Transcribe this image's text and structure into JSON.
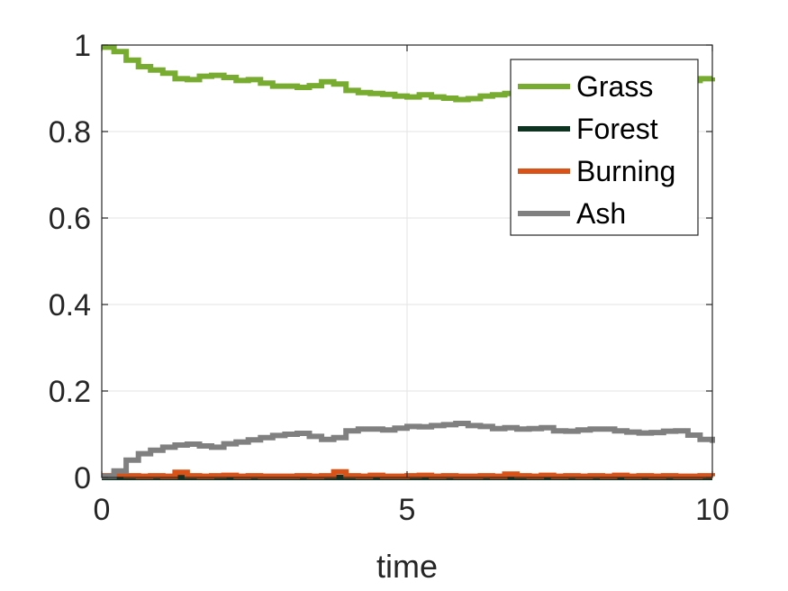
{
  "chart_data": {
    "type": "line",
    "title": "",
    "xlabel": "time",
    "ylabel": "",
    "xlim": [
      0,
      10
    ],
    "ylim": [
      0,
      1
    ],
    "x_ticks": [
      0,
      5,
      10
    ],
    "x_tick_labels": [
      "0",
      "5",
      "10"
    ],
    "y_ticks": [
      0,
      0.2,
      0.4,
      0.6,
      0.8,
      1
    ],
    "y_tick_labels": [
      "0",
      "0.2",
      "0.4",
      "0.6",
      "0.8",
      "1"
    ],
    "grid": true,
    "legend_position": "top-right",
    "series": [
      {
        "name": "Grass",
        "color": "#77ac30",
        "x": [
          0,
          0.2,
          0.4,
          0.6,
          0.8,
          1.0,
          1.2,
          1.4,
          1.6,
          1.8,
          2.0,
          2.2,
          2.4,
          2.6,
          2.8,
          3.0,
          3.2,
          3.4,
          3.6,
          3.8,
          4.0,
          4.2,
          4.4,
          4.6,
          4.8,
          5.0,
          5.2,
          5.4,
          5.6,
          5.8,
          6.0,
          6.2,
          6.4,
          6.6,
          6.8,
          7.0,
          7.2,
          9.4,
          9.6,
          9.8,
          10.0
        ],
        "values": [
          0.995,
          0.985,
          0.965,
          0.95,
          0.942,
          0.935,
          0.922,
          0.92,
          0.928,
          0.93,
          0.925,
          0.918,
          0.92,
          0.912,
          0.905,
          0.905,
          0.902,
          0.906,
          0.915,
          0.91,
          0.895,
          0.89,
          0.888,
          0.886,
          0.882,
          0.88,
          0.885,
          0.88,
          0.877,
          0.874,
          0.876,
          0.882,
          0.885,
          0.888,
          0.89,
          0.888,
          0.89,
          0.915,
          0.918,
          0.922,
          0.925
        ]
      },
      {
        "name": "Forest",
        "color": "#0e3320",
        "x": [
          0,
          10
        ],
        "values": [
          0,
          0
        ]
      },
      {
        "name": "Burning",
        "color": "#d95319",
        "x": [
          0,
          0.2,
          0.4,
          0.6,
          0.8,
          1.0,
          1.2,
          1.4,
          1.6,
          1.8,
          2.0,
          2.2,
          2.4,
          2.6,
          2.8,
          3.0,
          3.2,
          3.4,
          3.6,
          3.8,
          4.0,
          4.2,
          4.4,
          4.6,
          4.8,
          5.0,
          5.2,
          5.4,
          5.6,
          5.8,
          6.0,
          6.2,
          6.4,
          6.6,
          6.8,
          7.0,
          7.2,
          7.4,
          7.6,
          7.8,
          8.0,
          8.2,
          8.4,
          8.6,
          8.8,
          9.0,
          9.2,
          9.4,
          9.6,
          9.8,
          10.0
        ],
        "values": [
          0.004,
          0.008,
          0.004,
          0.003,
          0.004,
          0.003,
          0.012,
          0.004,
          0.003,
          0.004,
          0.005,
          0.003,
          0.004,
          0.003,
          0.003,
          0.003,
          0.004,
          0.003,
          0.004,
          0.013,
          0.004,
          0.003,
          0.005,
          0.003,
          0.003,
          0.004,
          0.005,
          0.003,
          0.004,
          0.003,
          0.003,
          0.004,
          0.003,
          0.008,
          0.004,
          0.003,
          0.005,
          0.003,
          0.004,
          0.003,
          0.004,
          0.003,
          0.005,
          0.003,
          0.004,
          0.003,
          0.004,
          0.003,
          0.003,
          0.004,
          0.003
        ]
      },
      {
        "name": "Ash",
        "color": "#808080",
        "x": [
          0,
          0.2,
          0.4,
          0.6,
          0.8,
          1.0,
          1.2,
          1.4,
          1.6,
          1.8,
          2.0,
          2.2,
          2.4,
          2.6,
          2.8,
          3.0,
          3.2,
          3.4,
          3.6,
          3.8,
          4.0,
          4.2,
          4.4,
          4.6,
          4.8,
          5.0,
          5.2,
          5.4,
          5.6,
          5.8,
          6.0,
          6.2,
          6.4,
          6.6,
          6.8,
          7.0,
          7.2,
          7.4,
          7.6,
          7.8,
          8.0,
          8.2,
          8.4,
          8.6,
          8.8,
          9.0,
          9.2,
          9.4,
          9.6,
          9.8,
          10.0
        ],
        "values": [
          0.003,
          0.015,
          0.04,
          0.055,
          0.063,
          0.07,
          0.075,
          0.077,
          0.073,
          0.07,
          0.078,
          0.082,
          0.087,
          0.092,
          0.097,
          0.1,
          0.102,
          0.095,
          0.088,
          0.092,
          0.108,
          0.112,
          0.112,
          0.11,
          0.114,
          0.118,
          0.117,
          0.12,
          0.122,
          0.125,
          0.12,
          0.118,
          0.113,
          0.115,
          0.112,
          0.113,
          0.115,
          0.108,
          0.107,
          0.11,
          0.112,
          0.112,
          0.108,
          0.105,
          0.103,
          0.104,
          0.107,
          0.108,
          0.098,
          0.088,
          0.08
        ]
      }
    ]
  }
}
